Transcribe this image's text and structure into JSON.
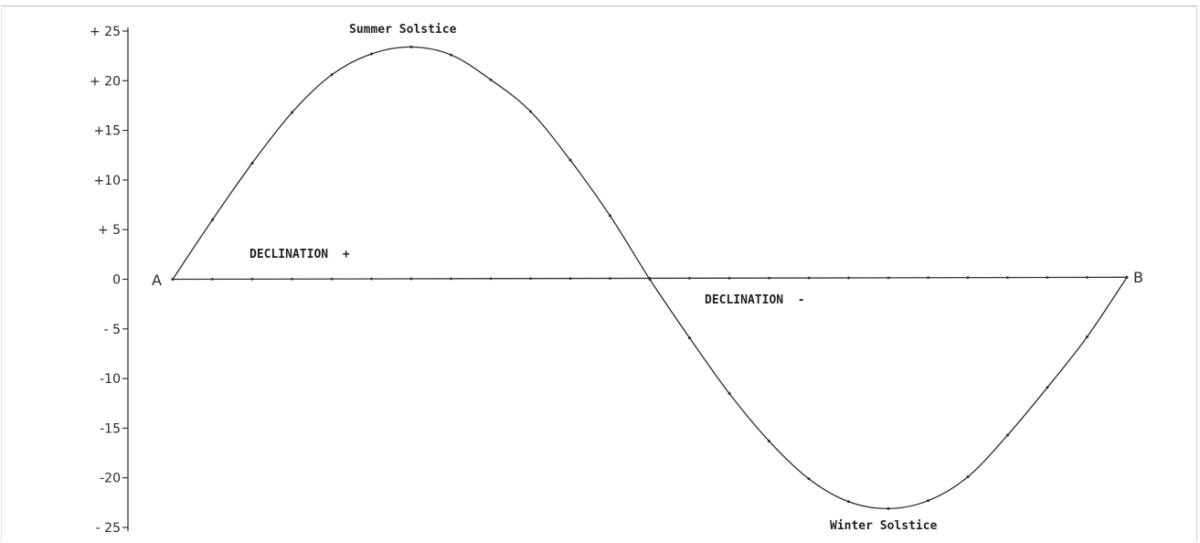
{
  "chart_data": {
    "type": "line",
    "ylim": [
      -25,
      25
    ],
    "y_ticks": [
      {
        "value": 25,
        "label": "+ 25"
      },
      {
        "value": 20,
        "label": "+ 20"
      },
      {
        "value": 15,
        "label": "+15"
      },
      {
        "value": 10,
        "label": "+10"
      },
      {
        "value": 5,
        "label": "+ 5"
      },
      {
        "value": 0,
        "label": "0"
      },
      {
        "value": -5,
        "label": "- 5"
      },
      {
        "value": -10,
        "label": "-10"
      },
      {
        "value": -15,
        "label": "-15"
      },
      {
        "value": -20,
        "label": "-20"
      },
      {
        "value": -25,
        "label": "- 25"
      }
    ],
    "series": [
      {
        "values": [
          0,
          6.0,
          11.7,
          16.8,
          20.6,
          22.7,
          23.4,
          22.6,
          20.1,
          16.9,
          12.0,
          6.4,
          0,
          -5.9,
          -11.5,
          -16.3,
          -20.1,
          -22.4,
          -23.1,
          -22.3,
          -19.9,
          -15.7,
          -10.9,
          -5.8,
          0.2
        ]
      }
    ],
    "baseline_start_label": "A",
    "baseline_end_label": "B",
    "annotations": {
      "summer": "Summer Solstice",
      "winter": "Winter Solstice",
      "decl_pos": "DECLINATION  +",
      "decl_neg": "DECLINATION  -"
    }
  }
}
